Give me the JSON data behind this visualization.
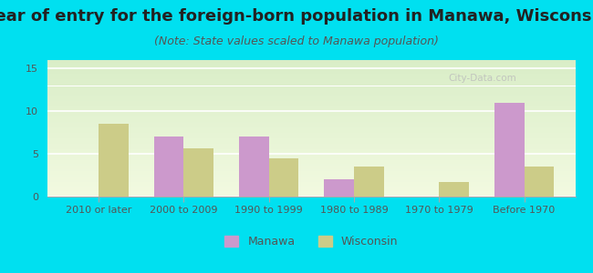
{
  "title": "Year of entry for the foreign-born population in Manawa, Wisconsin",
  "subtitle": "(Note: State values scaled to Manawa population)",
  "categories": [
    "2010 or later",
    "2000 to 2009",
    "1990 to 1999",
    "1980 to 1989",
    "1970 to 1979",
    "Before 1970"
  ],
  "manawa_values": [
    0,
    7.0,
    7.0,
    2.0,
    0,
    11.0
  ],
  "wisconsin_values": [
    8.5,
    5.7,
    4.5,
    3.5,
    1.7,
    3.5
  ],
  "manawa_color": "#cc99cc",
  "wisconsin_color": "#cccc88",
  "ylim": [
    0,
    16
  ],
  "yticks": [
    0,
    5,
    10,
    15
  ],
  "background_outer": "#00e0f0",
  "bar_width": 0.35,
  "title_fontsize": 13,
  "subtitle_fontsize": 9,
  "tick_fontsize": 8,
  "legend_fontsize": 9
}
